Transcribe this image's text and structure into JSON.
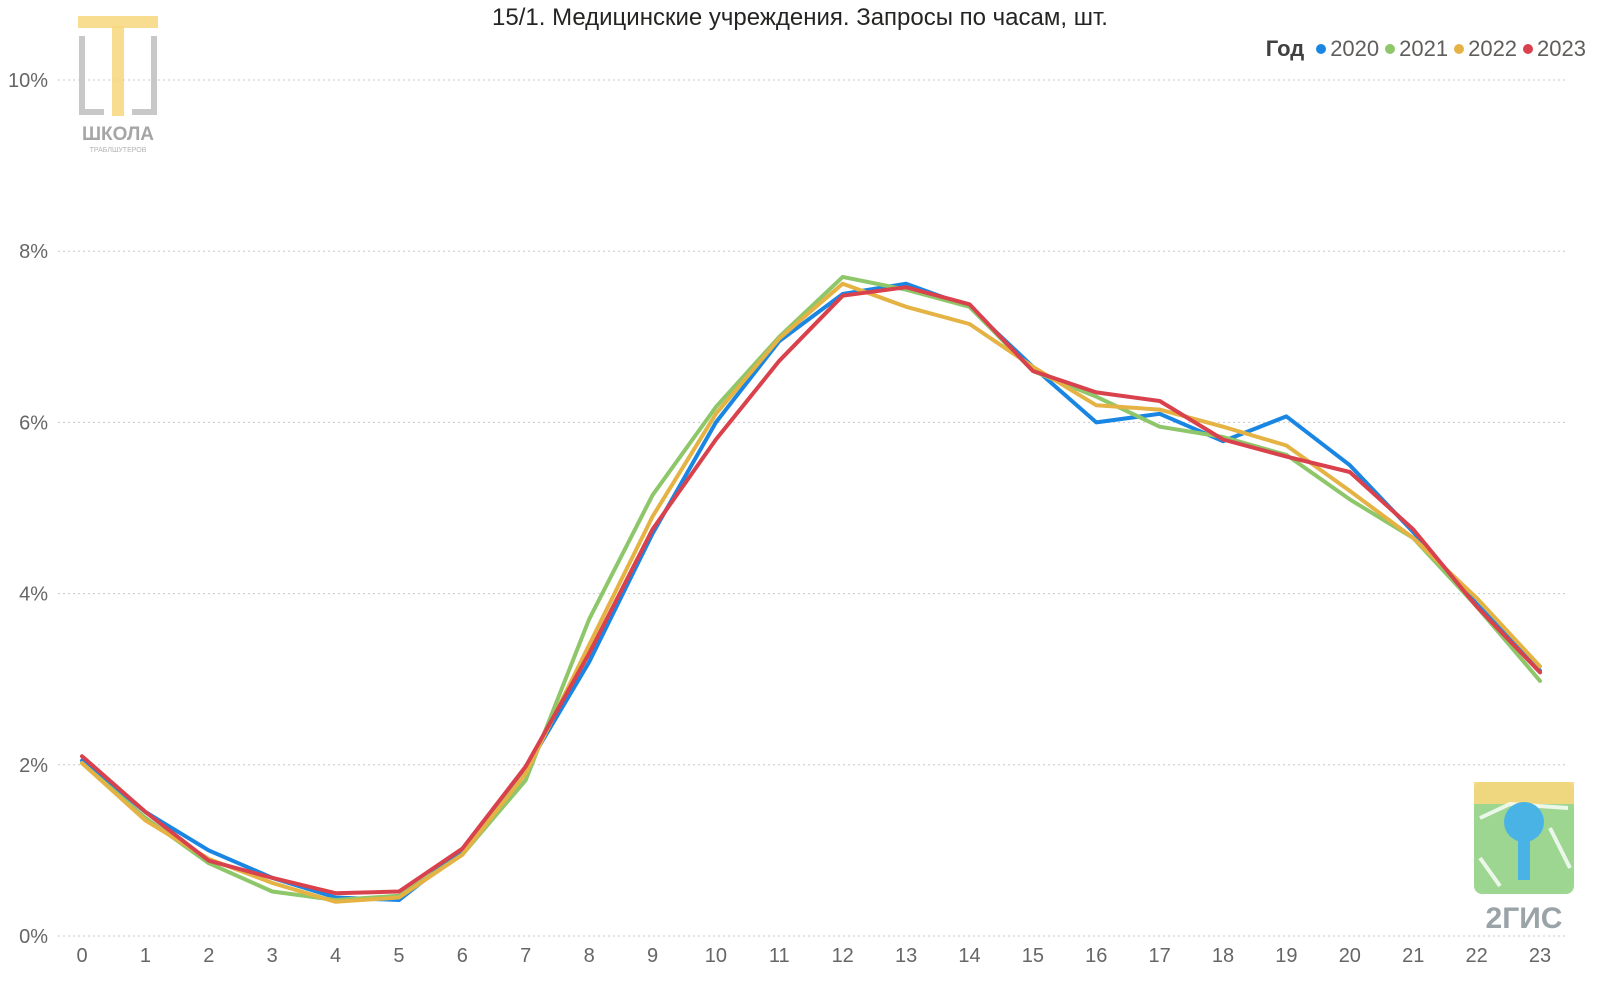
{
  "chart_data": {
    "type": "line",
    "title": "15/1. Медицинские учреждения. Запросы по часам, шт.",
    "legend_title": "Год",
    "legend_position": "top-right",
    "xlabel": "",
    "ylabel": "",
    "categories": [
      "0",
      "1",
      "2",
      "3",
      "4",
      "5",
      "6",
      "7",
      "8",
      "9",
      "10",
      "11",
      "12",
      "13",
      "14",
      "15",
      "16",
      "17",
      "18",
      "19",
      "20",
      "21",
      "22",
      "23"
    ],
    "ylim": [
      0,
      10
    ],
    "yticks": [
      {
        "value": 0,
        "label": "0%"
      },
      {
        "value": 2,
        "label": "2%"
      },
      {
        "value": 4,
        "label": "4%"
      },
      {
        "value": 6,
        "label": "6%"
      },
      {
        "value": 8,
        "label": "8%"
      },
      {
        "value": 10,
        "label": "10%"
      }
    ],
    "grid": true,
    "series": [
      {
        "name": "2020",
        "color": "#1a86e3",
        "values": [
          2.05,
          1.45,
          1.0,
          0.68,
          0.45,
          0.42,
          1.0,
          1.95,
          3.2,
          4.7,
          6.0,
          6.95,
          7.5,
          7.62,
          7.35,
          6.65,
          6.0,
          6.1,
          5.78,
          6.07,
          5.5,
          4.72,
          3.88,
          3.1
        ]
      },
      {
        "name": "2021",
        "color": "#8ec66a",
        "values": [
          2.02,
          1.38,
          0.85,
          0.52,
          0.42,
          0.47,
          0.95,
          1.82,
          3.7,
          5.15,
          6.18,
          7.0,
          7.7,
          7.55,
          7.35,
          6.6,
          6.3,
          5.95,
          5.83,
          5.62,
          5.1,
          4.65,
          3.85,
          2.98
        ]
      },
      {
        "name": "2022",
        "color": "#e5b344",
        "values": [
          2.02,
          1.35,
          0.9,
          0.62,
          0.4,
          0.45,
          0.95,
          1.9,
          3.4,
          4.9,
          6.1,
          6.98,
          7.62,
          7.35,
          7.15,
          6.65,
          6.2,
          6.15,
          5.95,
          5.73,
          5.2,
          4.65,
          3.95,
          3.15
        ]
      },
      {
        "name": "2023",
        "color": "#d9414c",
        "values": [
          2.1,
          1.45,
          0.88,
          0.68,
          0.5,
          0.52,
          1.02,
          1.98,
          3.3,
          4.75,
          5.8,
          6.72,
          7.48,
          7.58,
          7.38,
          6.6,
          6.35,
          6.25,
          5.8,
          5.6,
          5.42,
          4.75,
          3.85,
          3.08
        ]
      }
    ]
  },
  "logos": {
    "school": {
      "text_main": "ШКОЛА",
      "text_sub": "ТРАБЛШУТЕРОВ",
      "color": "#f7d77c"
    },
    "gis": {
      "text": "2ГИС",
      "color": "#8ccf7e"
    }
  }
}
